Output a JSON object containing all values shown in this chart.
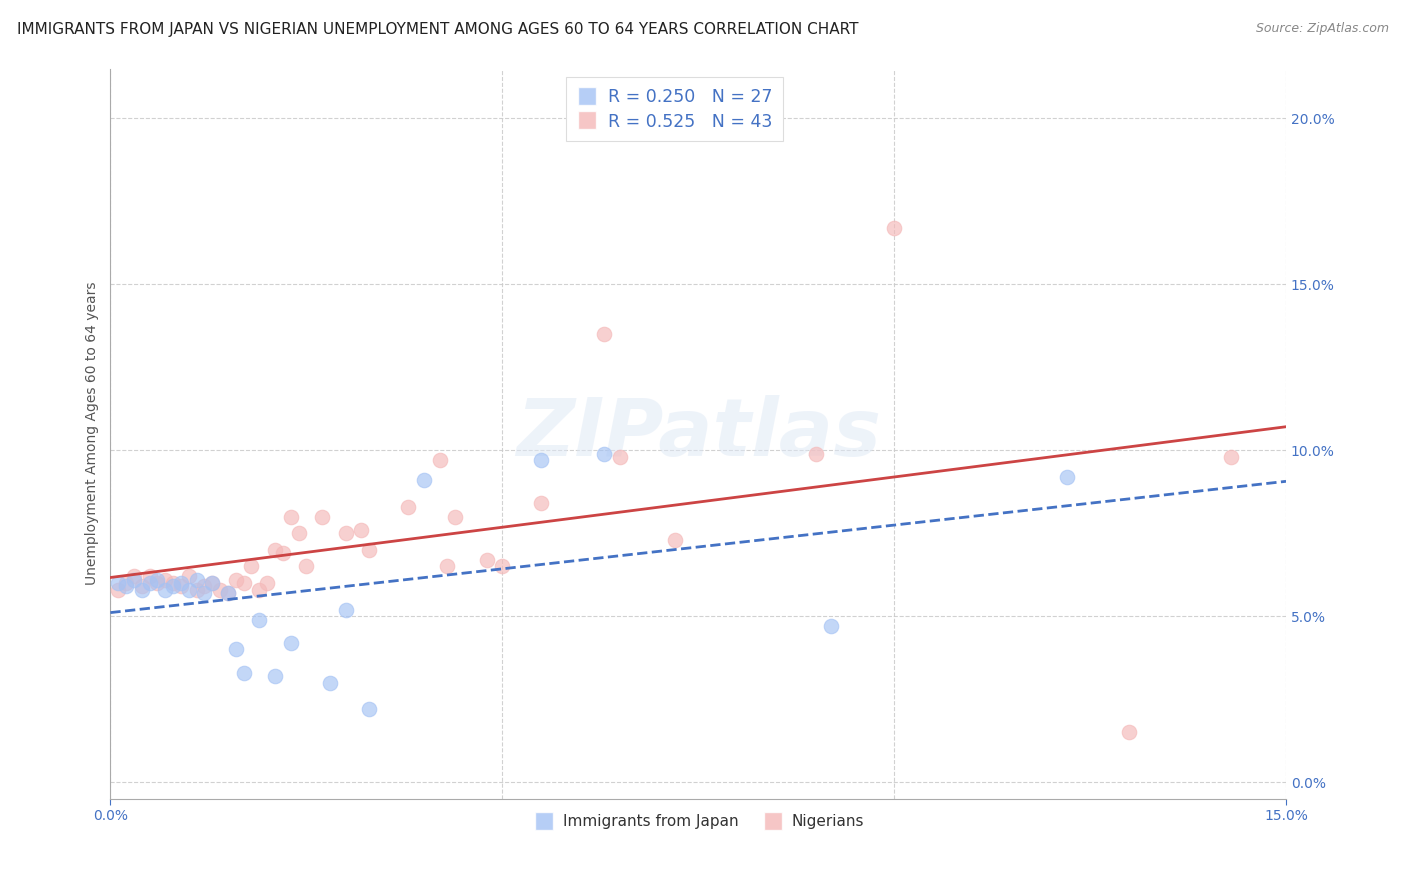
{
  "title": "IMMIGRANTS FROM JAPAN VS NIGERIAN UNEMPLOYMENT AMONG AGES 60 TO 64 YEARS CORRELATION CHART",
  "source": "Source: ZipAtlas.com",
  "ylabel": "Unemployment Among Ages 60 to 64 years",
  "xlim": [
    0.0,
    0.15
  ],
  "ylim": [
    -0.005,
    0.215
  ],
  "legend_japan": "Immigrants from Japan",
  "legend_nigerian": "Nigerians",
  "r_japan": "R = 0.250",
  "n_japan": "N = 27",
  "r_nigerian": "R = 0.525",
  "n_nigerian": "N = 43",
  "color_japan": "#a4c2f4",
  "color_nigerian": "#f4b8b8",
  "trendline_japan": "#4472c4",
  "trendline_nigerian": "#cc4444",
  "axis_color": "#4472c4",
  "grid_color": "#cccccc",
  "background_color": "#ffffff",
  "japan_x": [
    0.001,
    0.002,
    0.003,
    0.004,
    0.005,
    0.006,
    0.007,
    0.008,
    0.009,
    0.01,
    0.011,
    0.012,
    0.013,
    0.015,
    0.016,
    0.017,
    0.019,
    0.021,
    0.023,
    0.028,
    0.03,
    0.033,
    0.04,
    0.055,
    0.063,
    0.092,
    0.122
  ],
  "japan_y": [
    0.06,
    0.059,
    0.061,
    0.058,
    0.06,
    0.061,
    0.058,
    0.059,
    0.06,
    0.058,
    0.061,
    0.057,
    0.06,
    0.057,
    0.04,
    0.033,
    0.049,
    0.032,
    0.042,
    0.03,
    0.052,
    0.022,
    0.091,
    0.097,
    0.099,
    0.047,
    0.092
  ],
  "nigerian_x": [
    0.001,
    0.002,
    0.003,
    0.004,
    0.005,
    0.006,
    0.007,
    0.008,
    0.009,
    0.01,
    0.011,
    0.012,
    0.013,
    0.014,
    0.015,
    0.016,
    0.017,
    0.018,
    0.019,
    0.02,
    0.021,
    0.022,
    0.023,
    0.024,
    0.025,
    0.027,
    0.03,
    0.032,
    0.033,
    0.038,
    0.042,
    0.043,
    0.044,
    0.048,
    0.05,
    0.055,
    0.063,
    0.065,
    0.072,
    0.09,
    0.1,
    0.13,
    0.143
  ],
  "nigerian_y": [
    0.058,
    0.06,
    0.062,
    0.059,
    0.062,
    0.06,
    0.061,
    0.06,
    0.059,
    0.062,
    0.058,
    0.059,
    0.06,
    0.058,
    0.057,
    0.061,
    0.06,
    0.065,
    0.058,
    0.06,
    0.07,
    0.069,
    0.08,
    0.075,
    0.065,
    0.08,
    0.075,
    0.076,
    0.07,
    0.083,
    0.097,
    0.065,
    0.08,
    0.067,
    0.065,
    0.084,
    0.135,
    0.098,
    0.073,
    0.099,
    0.167,
    0.015,
    0.098
  ],
  "watermark_text": "ZIPatlas",
  "title_fontsize": 11,
  "label_fontsize": 10,
  "tick_fontsize": 10,
  "source_fontsize": 9,
  "marker_size": 110,
  "x_ticks": [
    0.0,
    0.15
  ],
  "y_ticks": [
    0.0,
    0.05,
    0.1,
    0.15,
    0.2
  ]
}
